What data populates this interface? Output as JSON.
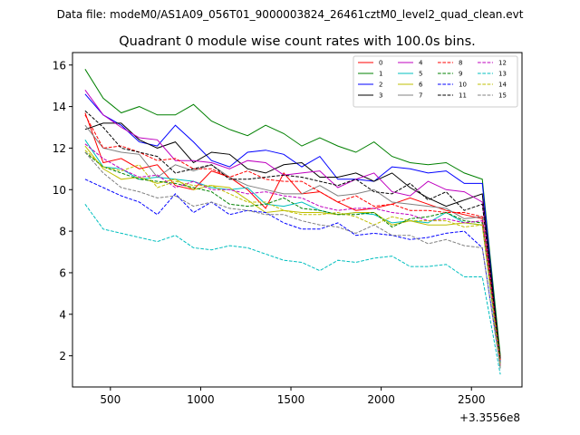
{
  "figure": {
    "suptitle": "Data file: modeM0/AS1A09_056T01_9000003824_26461cztM0_level2_quad_clean.evt"
  },
  "chart_data": {
    "type": "line",
    "title": "Quadrant 0 module wise count rates with 100.0s bins.",
    "xlabel": "",
    "ylabel": "",
    "x_offset_label": "+3.3556e8",
    "xlim": [
      290,
      2780
    ],
    "ylim": [
      0.5,
      16.6
    ],
    "xticks": [
      500,
      1000,
      1500,
      2000,
      2500
    ],
    "yticks": [
      2,
      4,
      6,
      8,
      10,
      12,
      14,
      16
    ],
    "grid": false,
    "legend_position": "top-right",
    "x": [
      360,
      460,
      560,
      660,
      760,
      860,
      960,
      1060,
      1160,
      1260,
      1360,
      1460,
      1560,
      1660,
      1760,
      1860,
      1960,
      2060,
      2160,
      2260,
      2360,
      2460,
      2560,
      2660
    ],
    "series": [
      {
        "name": "0",
        "color": "#ff0000",
        "dash": "solid",
        "values": [
          13.7,
          11.3,
          11.5,
          11.0,
          11.2,
          10.2,
          10.0,
          10.9,
          10.6,
          10.0,
          9.1,
          10.8,
          9.8,
          9.9,
          9.4,
          9.0,
          9.1,
          9.3,
          9.6,
          9.3,
          9.0,
          8.8,
          8.6,
          1.9
        ]
      },
      {
        "name": "1",
        "color": "#008000",
        "dash": "solid",
        "values": [
          15.8,
          14.4,
          13.7,
          14.0,
          13.6,
          13.6,
          14.1,
          13.3,
          12.9,
          12.6,
          13.1,
          12.7,
          12.1,
          12.5,
          12.1,
          11.8,
          12.3,
          11.6,
          11.3,
          11.2,
          11.3,
          10.8,
          10.5,
          2.0
        ]
      },
      {
        "name": "2",
        "color": "#0000ff",
        "dash": "solid",
        "values": [
          14.6,
          13.6,
          13.1,
          12.3,
          12.1,
          13.1,
          12.3,
          11.4,
          11.1,
          11.8,
          11.9,
          11.7,
          11.1,
          11.6,
          10.5,
          10.5,
          10.4,
          11.1,
          11.0,
          10.8,
          10.9,
          10.3,
          10.3,
          1.7
        ]
      },
      {
        "name": "3",
        "color": "#000000",
        "dash": "solid",
        "values": [
          12.9,
          13.2,
          13.2,
          12.4,
          12.0,
          12.3,
          11.3,
          11.8,
          11.7,
          11.0,
          10.8,
          11.2,
          11.3,
          10.6,
          10.6,
          10.8,
          10.4,
          10.8,
          10.1,
          9.6,
          9.2,
          9.5,
          9.8,
          1.8
        ]
      },
      {
        "name": "4",
        "color": "#bf00bf",
        "dash": "solid",
        "values": [
          14.8,
          13.6,
          13.0,
          12.5,
          12.4,
          11.4,
          11.4,
          11.3,
          11.0,
          11.4,
          11.3,
          10.7,
          10.8,
          10.9,
          10.1,
          10.5,
          10.8,
          9.9,
          9.7,
          10.4,
          10.0,
          9.9,
          9.4,
          1.5
        ]
      },
      {
        "name": "5",
        "color": "#00bfbf",
        "dash": "solid",
        "values": [
          12.4,
          11.1,
          11.0,
          10.5,
          10.6,
          10.5,
          10.4,
          10.1,
          10.0,
          10.1,
          9.3,
          9.2,
          9.4,
          9.0,
          8.8,
          8.9,
          8.8,
          8.4,
          8.5,
          8.4,
          8.9,
          8.4,
          8.3,
          1.4
        ]
      },
      {
        "name": "6",
        "color": "#bfbf00",
        "dash": "solid",
        "values": [
          12.1,
          11.0,
          10.5,
          10.6,
          10.3,
          10.5,
          10.0,
          10.2,
          10.1,
          9.5,
          8.9,
          9.0,
          8.9,
          8.9,
          8.8,
          8.9,
          8.9,
          8.3,
          8.5,
          8.3,
          8.3,
          8.4,
          8.3,
          1.5
        ]
      },
      {
        "name": "7",
        "color": "#808080",
        "dash": "solid",
        "values": [
          13.1,
          12.0,
          11.8,
          11.7,
          10.6,
          11.2,
          10.9,
          11.2,
          10.6,
          10.2,
          10.0,
          9.8,
          9.8,
          10.2,
          9.7,
          9.8,
          10.0,
          9.4,
          9.3,
          9.2,
          9.1,
          8.6,
          8.7,
          1.6
        ]
      },
      {
        "name": "8",
        "color": "#ff0000",
        "dash": "dashed",
        "values": [
          13.6,
          12.0,
          12.1,
          11.8,
          11.4,
          11.5,
          11.0,
          11.0,
          10.6,
          10.9,
          10.5,
          10.4,
          10.4,
          9.9,
          9.4,
          9.7,
          9.2,
          9.3,
          9.0,
          9.0,
          8.9,
          8.9,
          8.7,
          1.8
        ]
      },
      {
        "name": "9",
        "color": "#008000",
        "dash": "dashed",
        "values": [
          11.8,
          11.1,
          10.8,
          10.5,
          10.4,
          10.3,
          10.1,
          9.9,
          9.3,
          9.2,
          9.3,
          9.6,
          9.1,
          9.0,
          8.8,
          8.8,
          8.9,
          8.2,
          8.6,
          8.7,
          8.9,
          8.5,
          8.4,
          1.6
        ]
      },
      {
        "name": "10",
        "color": "#0000ff",
        "dash": "dashed",
        "values": [
          10.5,
          10.1,
          9.7,
          9.4,
          8.8,
          9.8,
          8.9,
          9.4,
          8.8,
          9.0,
          8.9,
          8.4,
          8.1,
          8.1,
          8.4,
          7.8,
          7.9,
          7.8,
          7.6,
          7.7,
          7.9,
          8.0,
          7.2,
          1.5
        ]
      },
      {
        "name": "11",
        "color": "#000000",
        "dash": "dashed",
        "values": [
          13.8,
          13.0,
          12.0,
          11.8,
          11.6,
          10.8,
          11.0,
          11.2,
          10.5,
          10.5,
          10.6,
          10.7,
          10.6,
          10.4,
          10.2,
          10.5,
          9.9,
          9.8,
          10.3,
          9.5,
          9.9,
          9.0,
          9.3,
          1.8
        ]
      },
      {
        "name": "12",
        "color": "#bf00bf",
        "dash": "dashed",
        "values": [
          12.2,
          11.5,
          11.0,
          10.6,
          10.7,
          10.1,
          10.4,
          10.0,
          10.0,
          9.8,
          9.9,
          9.7,
          9.6,
          9.2,
          9.0,
          9.1,
          9.1,
          8.9,
          8.8,
          8.5,
          8.6,
          8.4,
          8.5,
          1.5
        ]
      },
      {
        "name": "13",
        "color": "#00bfbf",
        "dash": "dashed",
        "values": [
          9.3,
          8.1,
          7.9,
          7.7,
          7.5,
          7.8,
          7.2,
          7.1,
          7.3,
          7.2,
          6.9,
          6.6,
          6.5,
          6.1,
          6.6,
          6.5,
          6.7,
          6.8,
          6.3,
          6.3,
          6.4,
          5.8,
          5.8,
          1.1
        ]
      },
      {
        "name": "14",
        "color": "#bfbf00",
        "dash": "dashed",
        "values": [
          11.9,
          11.1,
          10.9,
          11.2,
          10.1,
          10.4,
          10.2,
          10.2,
          9.8,
          9.4,
          9.4,
          9.0,
          8.8,
          8.8,
          8.9,
          8.7,
          8.3,
          8.7,
          8.5,
          8.5,
          8.5,
          8.2,
          8.3,
          1.5
        ]
      },
      {
        "name": "15",
        "color": "#808080",
        "dash": "dashed",
        "values": [
          11.8,
          10.8,
          10.1,
          9.9,
          9.6,
          9.7,
          9.2,
          9.4,
          9.1,
          9.0,
          8.8,
          8.8,
          8.5,
          8.3,
          8.2,
          7.9,
          8.3,
          7.8,
          7.8,
          7.4,
          7.6,
          7.3,
          7.2,
          1.4
        ]
      }
    ]
  }
}
